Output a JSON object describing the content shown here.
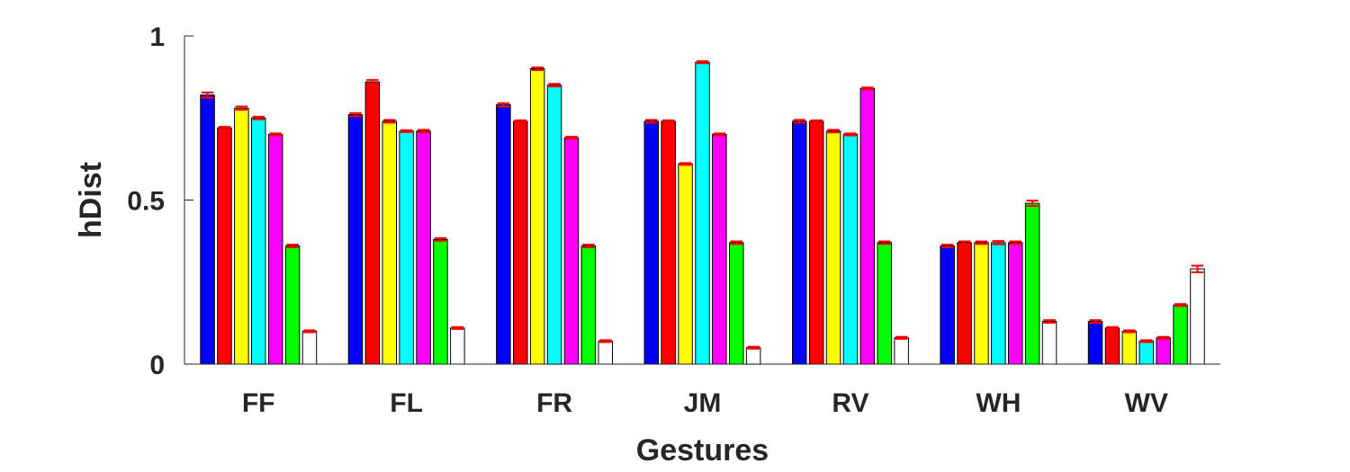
{
  "chart_data": {
    "type": "bar",
    "title": "",
    "xlabel": "Gestures",
    "ylabel": "hDist",
    "ylim": [
      0,
      1
    ],
    "yticks": [
      "0",
      "0.5",
      "1"
    ],
    "ytick_values": [
      0,
      0.5,
      1
    ],
    "grid": false,
    "legend": "none",
    "error_bar_color": "#ff0000",
    "categories": [
      "FF",
      "FL",
      "FR",
      "JM",
      "RV",
      "WH",
      "WV"
    ],
    "series": [
      {
        "color": "#0000ff",
        "values": [
          0.82,
          0.76,
          0.79,
          0.74,
          0.74,
          0.36,
          0.13
        ],
        "errors": [
          0.008,
          0.005,
          0.005,
          0.004,
          0.004,
          0.004,
          0.004
        ]
      },
      {
        "color": "#ff0000",
        "values": [
          0.72,
          0.86,
          0.74,
          0.74,
          0.74,
          0.37,
          0.11
        ],
        "errors": [
          0.003,
          0.006,
          0.003,
          0.003,
          0.003,
          0.004,
          0.003
        ]
      },
      {
        "color": "#ffff00",
        "values": [
          0.78,
          0.74,
          0.9,
          0.61,
          0.71,
          0.37,
          0.1
        ],
        "errors": [
          0.005,
          0.004,
          0.004,
          0.003,
          0.004,
          0.004,
          0.003
        ]
      },
      {
        "color": "#00ffff",
        "values": [
          0.75,
          0.71,
          0.85,
          0.92,
          0.7,
          0.37,
          0.07
        ],
        "errors": [
          0.004,
          0.003,
          0.004,
          0.003,
          0.003,
          0.005,
          0.003
        ]
      },
      {
        "color": "#ff00ff",
        "values": [
          0.7,
          0.71,
          0.69,
          0.7,
          0.84,
          0.37,
          0.08
        ],
        "errors": [
          0.003,
          0.004,
          0.003,
          0.003,
          0.003,
          0.004,
          0.003
        ]
      },
      {
        "color": "#00ff00",
        "values": [
          0.36,
          0.38,
          0.36,
          0.37,
          0.37,
          0.49,
          0.18
        ],
        "errors": [
          0.004,
          0.004,
          0.004,
          0.004,
          0.004,
          0.008,
          0.003
        ]
      },
      {
        "color": "#ffffff",
        "values": [
          0.1,
          0.11,
          0.07,
          0.05,
          0.08,
          0.13,
          0.29
        ],
        "errors": [
          0.003,
          0.003,
          0.003,
          0.003,
          0.003,
          0.004,
          0.01
        ]
      }
    ]
  }
}
